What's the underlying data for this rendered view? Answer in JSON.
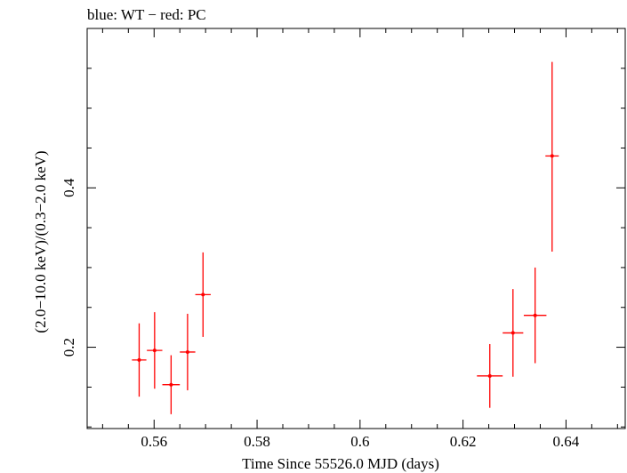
{
  "chart_data": {
    "type": "scatter",
    "title": "blue: WT − red: PC",
    "xlabel": "Time Since 55526.0 MJD (days)",
    "ylabel": "(2.0−10.0 keV)/(0.3−2.0 keV)",
    "xlim": [
      0.547,
      0.6515
    ],
    "ylim": [
      0.098,
      0.6
    ],
    "x_major_ticks": [
      0.56,
      0.58,
      0.6,
      0.62,
      0.64
    ],
    "x_tick_labels": [
      "0.56",
      "0.58",
      "0.6",
      "0.62",
      "0.64"
    ],
    "x_minor_step": 0.005,
    "y_major_ticks": [
      0.2,
      0.4
    ],
    "y_tick_labels": [
      "0.2",
      "0.4"
    ],
    "y_minor_step": 0.05,
    "grid": false,
    "series": [
      {
        "color": "#ff0000",
        "points": [
          {
            "x": 0.5571,
            "y": 0.184,
            "xerr": 0.0014,
            "yerr_low": 0.046,
            "yerr_high": 0.046
          },
          {
            "x": 0.5601,
            "y": 0.196,
            "xerr": 0.0015,
            "yerr_low": 0.048,
            "yerr_high": 0.048
          },
          {
            "x": 0.5633,
            "y": 0.153,
            "xerr": 0.0017,
            "yerr_low": 0.037,
            "yerr_high": 0.037
          },
          {
            "x": 0.5665,
            "y": 0.194,
            "xerr": 0.0015,
            "yerr_low": 0.048,
            "yerr_high": 0.048
          },
          {
            "x": 0.5695,
            "y": 0.266,
            "xerr": 0.0015,
            "yerr_low": 0.053,
            "yerr_high": 0.053
          },
          {
            "x": 0.6252,
            "y": 0.164,
            "xerr": 0.0025,
            "yerr_low": 0.04,
            "yerr_high": 0.04
          },
          {
            "x": 0.6297,
            "y": 0.218,
            "xerr": 0.002,
            "yerr_low": 0.055,
            "yerr_high": 0.055
          },
          {
            "x": 0.634,
            "y": 0.24,
            "xerr": 0.0022,
            "yerr_low": 0.06,
            "yerr_high": 0.06
          },
          {
            "x": 0.6373,
            "y": 0.44,
            "xerr": 0.0013,
            "yerr_low": 0.12,
            "yerr_high": 0.118
          }
        ]
      }
    ]
  }
}
